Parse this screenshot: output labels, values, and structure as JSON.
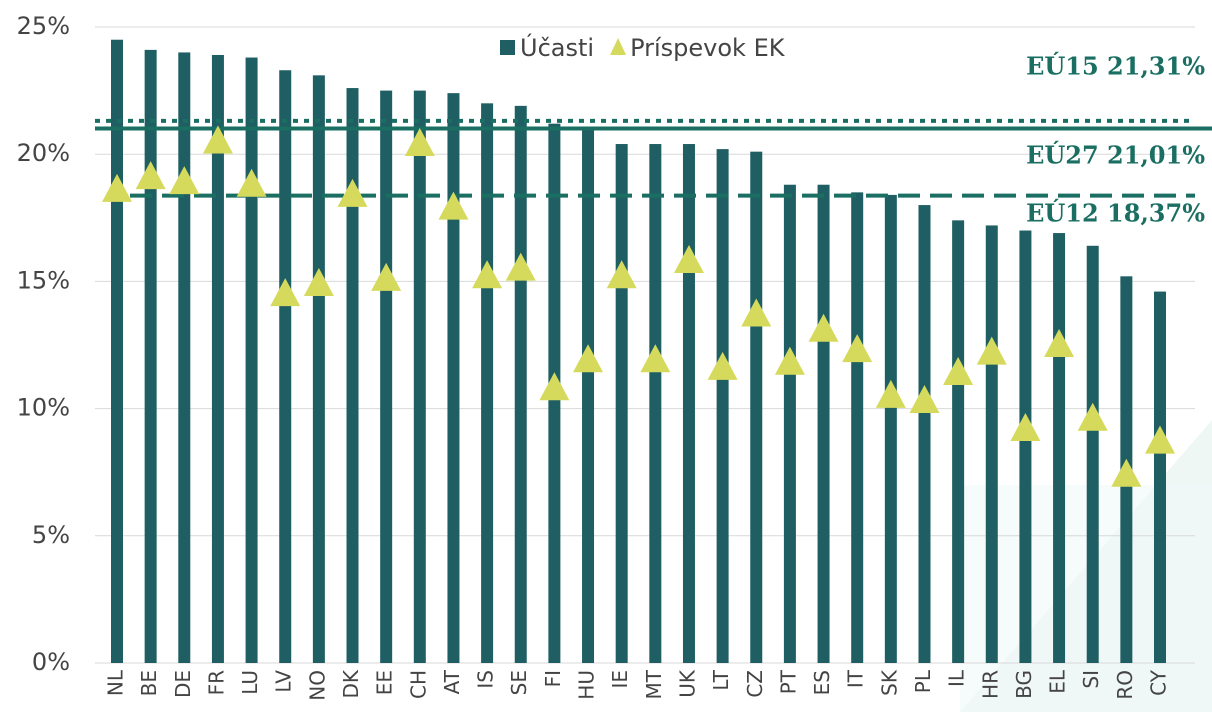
{
  "chart_data": {
    "type": "bar",
    "categories": [
      "NL",
      "BE",
      "DE",
      "FR",
      "LU",
      "LV",
      "NO",
      "DK",
      "EE",
      "CH",
      "AT",
      "IS",
      "SE",
      "FI",
      "HU",
      "IE",
      "MT",
      "UK",
      "LT",
      "CZ",
      "PT",
      "ES",
      "IT",
      "SK",
      "PL",
      "IL",
      "HR",
      "BG",
      "EL",
      "SI",
      "RO",
      "CY"
    ],
    "series": [
      {
        "name": "Účasti",
        "type": "bar",
        "color": "#1f5f63",
        "values": [
          24.5,
          24.1,
          24.0,
          23.9,
          23.8,
          23.3,
          23.1,
          22.6,
          22.5,
          22.5,
          22.4,
          22.0,
          21.9,
          21.2,
          21.0,
          20.4,
          20.4,
          20.4,
          20.2,
          20.1,
          18.8,
          18.8,
          18.5,
          18.4,
          18.0,
          17.4,
          17.2,
          17.0,
          16.9,
          16.4,
          15.2,
          14.6
        ]
      },
      {
        "name": "Príspevok EK",
        "type": "scatter",
        "color": "#d6da5c",
        "values": [
          18.6,
          19.1,
          18.9,
          20.5,
          18.8,
          14.5,
          14.9,
          18.4,
          15.1,
          20.4,
          17.9,
          15.2,
          15.5,
          10.8,
          11.9,
          15.2,
          11.9,
          15.8,
          11.6,
          13.7,
          11.8,
          13.1,
          12.3,
          10.5,
          10.3,
          11.4,
          12.2,
          9.2,
          12.5,
          9.6,
          7.4,
          8.7
        ]
      }
    ],
    "reference_lines": [
      {
        "label": "EÚ15 21,31%",
        "value": 21.31,
        "style": "dotted",
        "color": "#1a6e62"
      },
      {
        "label": "EÚ27 21,01%",
        "value": 21.01,
        "style": "solid",
        "color": "#1a6e62"
      },
      {
        "label": "EÚ12 18,37%",
        "value": 18.37,
        "style": "dashed",
        "color": "#1a6e62"
      }
    ],
    "ylim": [
      0,
      25
    ],
    "yticks": [
      {
        "value": 0,
        "label": "0%"
      },
      {
        "value": 5,
        "label": "5%"
      },
      {
        "value": 10,
        "label": "10%"
      },
      {
        "value": 15,
        "label": "15%"
      },
      {
        "value": 20,
        "label": "20%"
      },
      {
        "value": 25,
        "label": "25%"
      }
    ],
    "grid": true,
    "legend": "top"
  }
}
